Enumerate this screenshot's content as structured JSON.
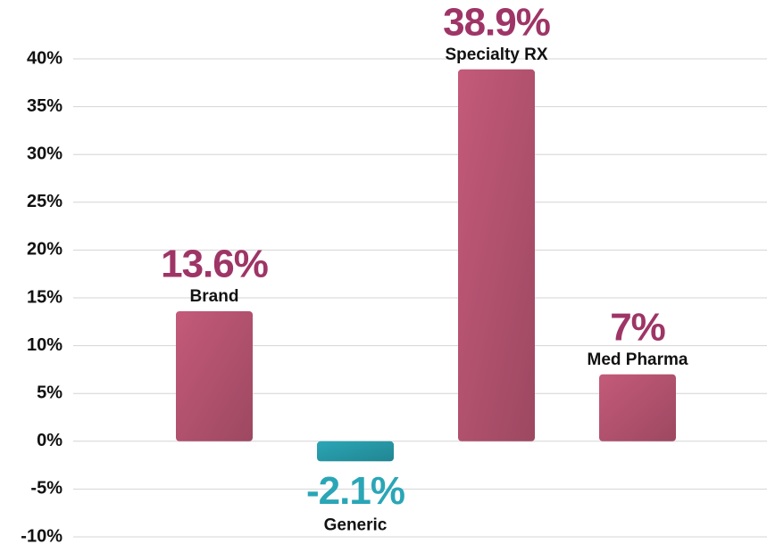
{
  "chart_data": {
    "type": "bar",
    "categories": [
      "Brand",
      "Generic",
      "Specialty RX",
      "Med Pharma"
    ],
    "values": [
      13.6,
      -2.1,
      38.9,
      7
    ],
    "value_labels": [
      "13.6%",
      "-2.1%",
      "38.9%",
      "7%"
    ],
    "colors": [
      "#c45a7a",
      "#2aa6b6",
      "#c45a7a",
      "#c45a7a"
    ],
    "value_label_colors": [
      "#9e3566",
      "#2aa6b6",
      "#9e3566",
      "#9e3566"
    ],
    "ylim": [
      -10,
      40
    ],
    "yticks": [
      {
        "value": -10,
        "label": "-10%"
      },
      {
        "value": -5,
        "label": "-5%"
      },
      {
        "value": 0,
        "label": "0%"
      },
      {
        "value": 5,
        "label": "5%"
      },
      {
        "value": 10,
        "label": "10%"
      },
      {
        "value": 15,
        "label": "15%"
      },
      {
        "value": 20,
        "label": "20%"
      },
      {
        "value": 25,
        "label": "25%"
      },
      {
        "value": 30,
        "label": "30%"
      },
      {
        "value": 35,
        "label": "35%"
      },
      {
        "value": 40,
        "label": "40%"
      }
    ],
    "grid": true
  }
}
